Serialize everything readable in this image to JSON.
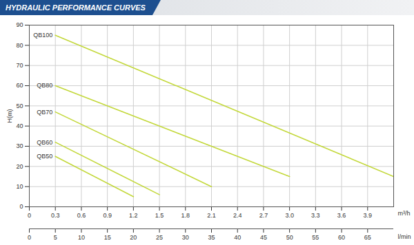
{
  "chart_data": {
    "type": "line",
    "title": "HYDRAULIC PERFORMANCE CURVES",
    "y_label": "H(m)",
    "x_label": "m³/h",
    "x2_label": "l/min",
    "xlim": [
      0,
      4.2
    ],
    "xticks": [
      0,
      0.3,
      0.6,
      0.9,
      1.2,
      1.5,
      1.8,
      2.1,
      2.4,
      2.7,
      {
        "value": 3,
        "label": "3.0"
      },
      3.3,
      3.6,
      3.9
    ],
    "x2lim": [
      0,
      70
    ],
    "x2ticks": [
      0,
      5,
      10,
      15,
      20,
      25,
      30,
      35,
      40,
      45,
      50,
      55,
      60,
      65
    ],
    "ylim": [
      0,
      90
    ],
    "yticks": [
      0,
      10,
      20,
      30,
      40,
      50,
      60,
      70,
      80,
      90
    ],
    "grid": true,
    "series": [
      {
        "name": "QB100",
        "color": "#c3d83a",
        "x": [
          0.3,
          4.2
        ],
        "values": [
          85,
          15
        ]
      },
      {
        "name": "QB80",
        "color": "#c3d83a",
        "x": [
          0.3,
          3.0
        ],
        "values": [
          60,
          15
        ]
      },
      {
        "name": "QB70",
        "color": "#c3d83a",
        "x": [
          0.3,
          2.1
        ],
        "values": [
          47,
          10
        ]
      },
      {
        "name": "QB60",
        "color": "#c3d83a",
        "x": [
          0.3,
          1.5
        ],
        "values": [
          32,
          6
        ]
      },
      {
        "name": "QB50",
        "color": "#c3d83a",
        "x": [
          0.3,
          1.2
        ],
        "values": [
          25,
          5
        ]
      }
    ]
  }
}
